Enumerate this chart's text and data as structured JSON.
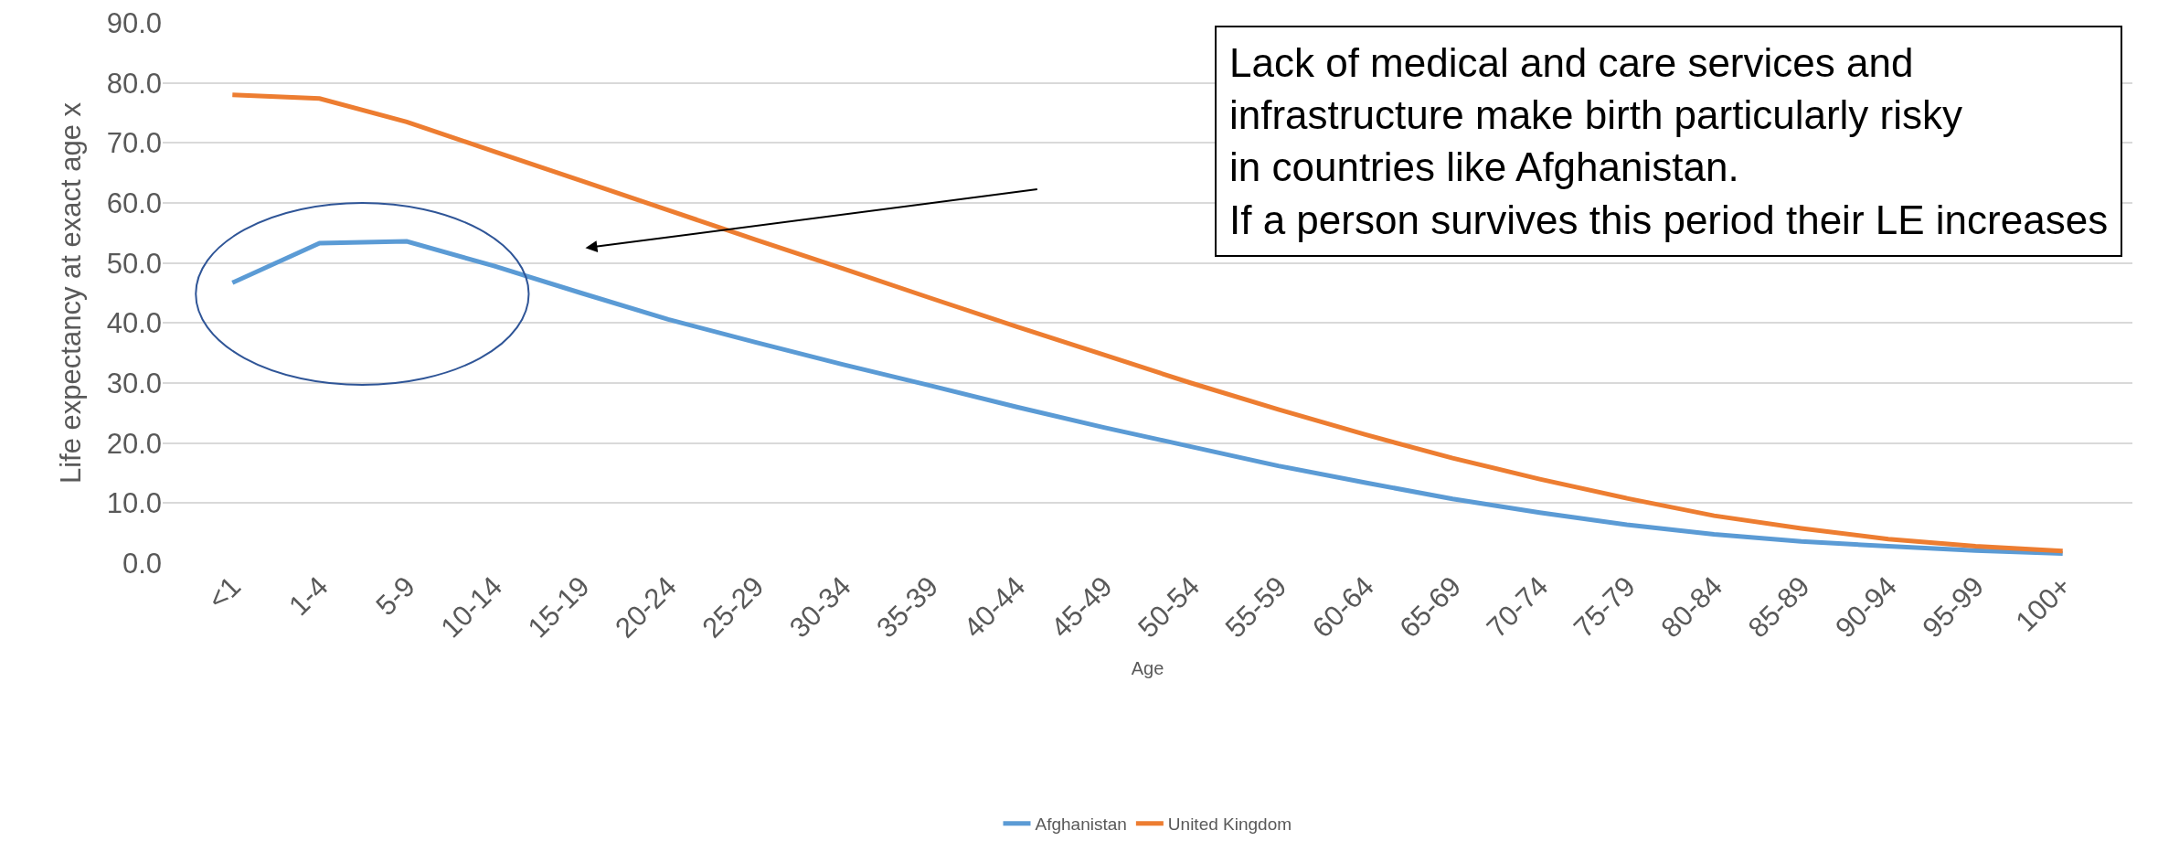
{
  "chart_data": {
    "type": "line",
    "xlabel": "Age",
    "ylabel": "Life expectancy at exact age x",
    "categories": [
      "<1",
      "1-4",
      "5-9",
      "10-14",
      "15-19",
      "20-24",
      "25-29",
      "30-34",
      "35-39",
      "40-44",
      "45-49",
      "50-54",
      "55-59",
      "60-64",
      "65-69",
      "70-74",
      "75-79",
      "80-84",
      "85-89",
      "90-94",
      "95-99",
      "100+"
    ],
    "series": [
      {
        "name": "Afghanistan",
        "color": "#5b9bd5",
        "values": [
          46.7,
          53.3,
          53.6,
          49.5,
          45.0,
          40.6,
          36.8,
          33.1,
          29.6,
          26.0,
          22.6,
          19.4,
          16.2,
          13.4,
          10.7,
          8.4,
          6.4,
          4.8,
          3.6,
          2.8,
          2.1,
          1.6
        ]
      },
      {
        "name": "United Kingdom",
        "color": "#ed7d31",
        "values": [
          78.0,
          77.4,
          73.5,
          68.6,
          63.7,
          58.8,
          53.9,
          49.1,
          44.2,
          39.4,
          34.7,
          30.0,
          25.6,
          21.4,
          17.5,
          14.0,
          10.8,
          7.9,
          5.8,
          4.0,
          2.8,
          2.0
        ]
      }
    ],
    "ylim": [
      0,
      90
    ],
    "yticks": [
      {
        "value": 0,
        "label": "0.0"
      },
      {
        "value": 10,
        "label": "10.0"
      },
      {
        "value": 20,
        "label": "20.0"
      },
      {
        "value": 30,
        "label": "30.0"
      },
      {
        "value": 40,
        "label": "40.0"
      },
      {
        "value": 50,
        "label": "50.0"
      },
      {
        "value": 60,
        "label": "60.0"
      },
      {
        "value": 70,
        "label": "70.0"
      },
      {
        "value": 80,
        "label": "80.0"
      },
      {
        "value": 90,
        "label": "90.0"
      }
    ],
    "grid": "y",
    "legend": "bottom",
    "marker": "none",
    "line_style": "solid",
    "annotations": [
      "Lack of medical and care services and\ninfrastructure make birth particularly risky\nin countries like Afghanistan.\nIf a person survives this period their LE increases"
    ]
  }
}
